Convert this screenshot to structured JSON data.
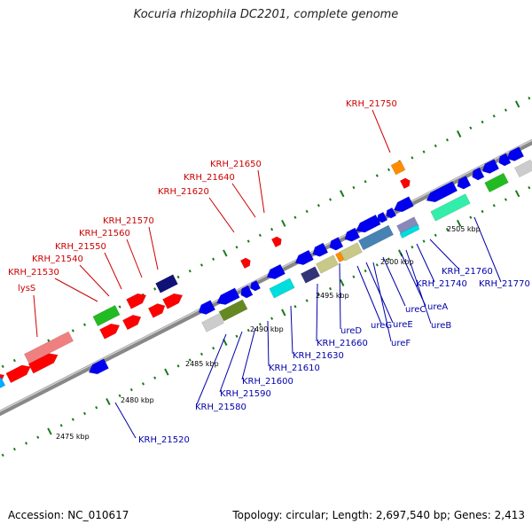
{
  "title": "Kocuria rhizophila DC2201, complete genome",
  "footer": {
    "accession": "Accession: NC_010617",
    "summary": "Topology: circular; Length: 2,697,540 bp; Genes: 2,413"
  },
  "colors": {
    "forward_label": "#cc0000",
    "reverse_label": "#0000aa",
    "backbone": "#999999",
    "tick": "#007700",
    "forward_cds": "#ff0000",
    "reverse_cds": "#0000ee"
  },
  "scale_labels": [
    "2475 kbp",
    "2480 kbp",
    "2485 kbp",
    "2490 kbp",
    "2495 kbp",
    "2500 kbp",
    "2505 kbp"
  ],
  "forward_labels": [
    "KRH_21750",
    "KRH_21650",
    "KRH_21640",
    "KRH_21620",
    "KRH_21570",
    "KRH_21560",
    "KRH_21550",
    "KRH_21540",
    "KRH_21530",
    "lysS"
  ],
  "reverse_labels": [
    "KRH_21760",
    "KRH_21770",
    "KRH_21740",
    "ureA",
    "ureC",
    "ureB",
    "ureE",
    "ureG",
    "ureF",
    "ureD",
    "KRH_21660",
    "KRH_21630",
    "KRH_21610",
    "KRH_21600",
    "KRH_21590",
    "KRH_21580",
    "KRH_21520"
  ]
}
